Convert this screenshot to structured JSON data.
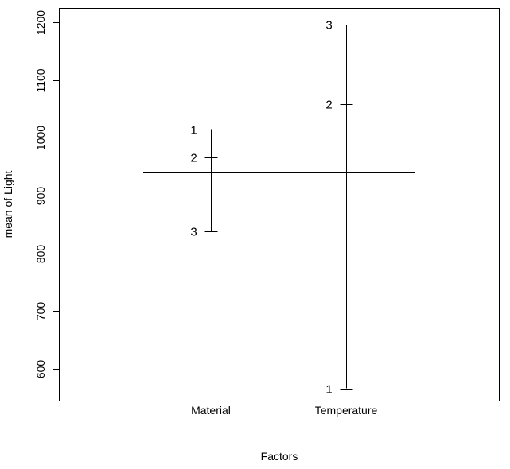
{
  "chart_data": {
    "type": "design-plot",
    "xlabel": "Factors",
    "ylabel": "mean of Light",
    "ylim": [
      545,
      1225
    ],
    "yticks": [
      600,
      700,
      800,
      900,
      1000,
      1100,
      1200
    ],
    "grand_mean": 940,
    "factors": [
      {
        "name": "Material",
        "levels": [
          {
            "label": "1",
            "value": 1015
          },
          {
            "label": "2",
            "value": 966
          },
          {
            "label": "3",
            "value": 838
          }
        ]
      },
      {
        "name": "Temperature",
        "levels": [
          {
            "label": "1",
            "value": 566
          },
          {
            "label": "2",
            "value": 1058
          },
          {
            "label": "3",
            "value": 1196
          }
        ]
      }
    ],
    "grid": false,
    "legend": "none"
  }
}
